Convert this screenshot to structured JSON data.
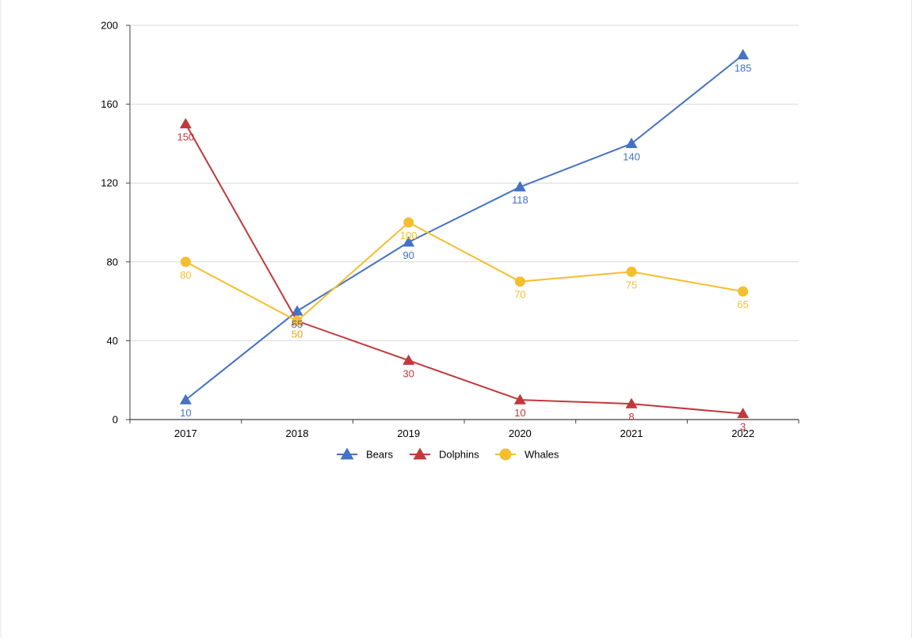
{
  "chart_data": {
    "type": "line",
    "title": "",
    "xlabel": "",
    "ylabel": "",
    "categories": [
      "2017",
      "2018",
      "2019",
      "2020",
      "2021",
      "2022"
    ],
    "ylim": [
      0,
      200
    ],
    "yticks": [
      "0",
      "40",
      "80",
      "120",
      "160",
      "200"
    ],
    "grid": true,
    "legend": "bottom",
    "series": [
      {
        "name": "Bears",
        "values": [
          10,
          55,
          90,
          118,
          140,
          185
        ],
        "labels": [
          "10",
          "55",
          "90",
          "118",
          "140",
          "185"
        ],
        "color": "#4472c4",
        "marker": "triangle"
      },
      {
        "name": "Dolphins",
        "values": [
          150,
          50,
          30,
          10,
          8,
          3
        ],
        "labels": [
          "150",
          "50",
          "30",
          "10",
          "8",
          "3"
        ],
        "color": "#c0393b",
        "marker": "triangle"
      },
      {
        "name": "Whales",
        "values": [
          80,
          50,
          100,
          70,
          75,
          65
        ],
        "labels": [
          "80",
          "50",
          "100",
          "70",
          "75",
          "65"
        ],
        "color": "#f5be2e",
        "marker": "circle"
      }
    ]
  }
}
